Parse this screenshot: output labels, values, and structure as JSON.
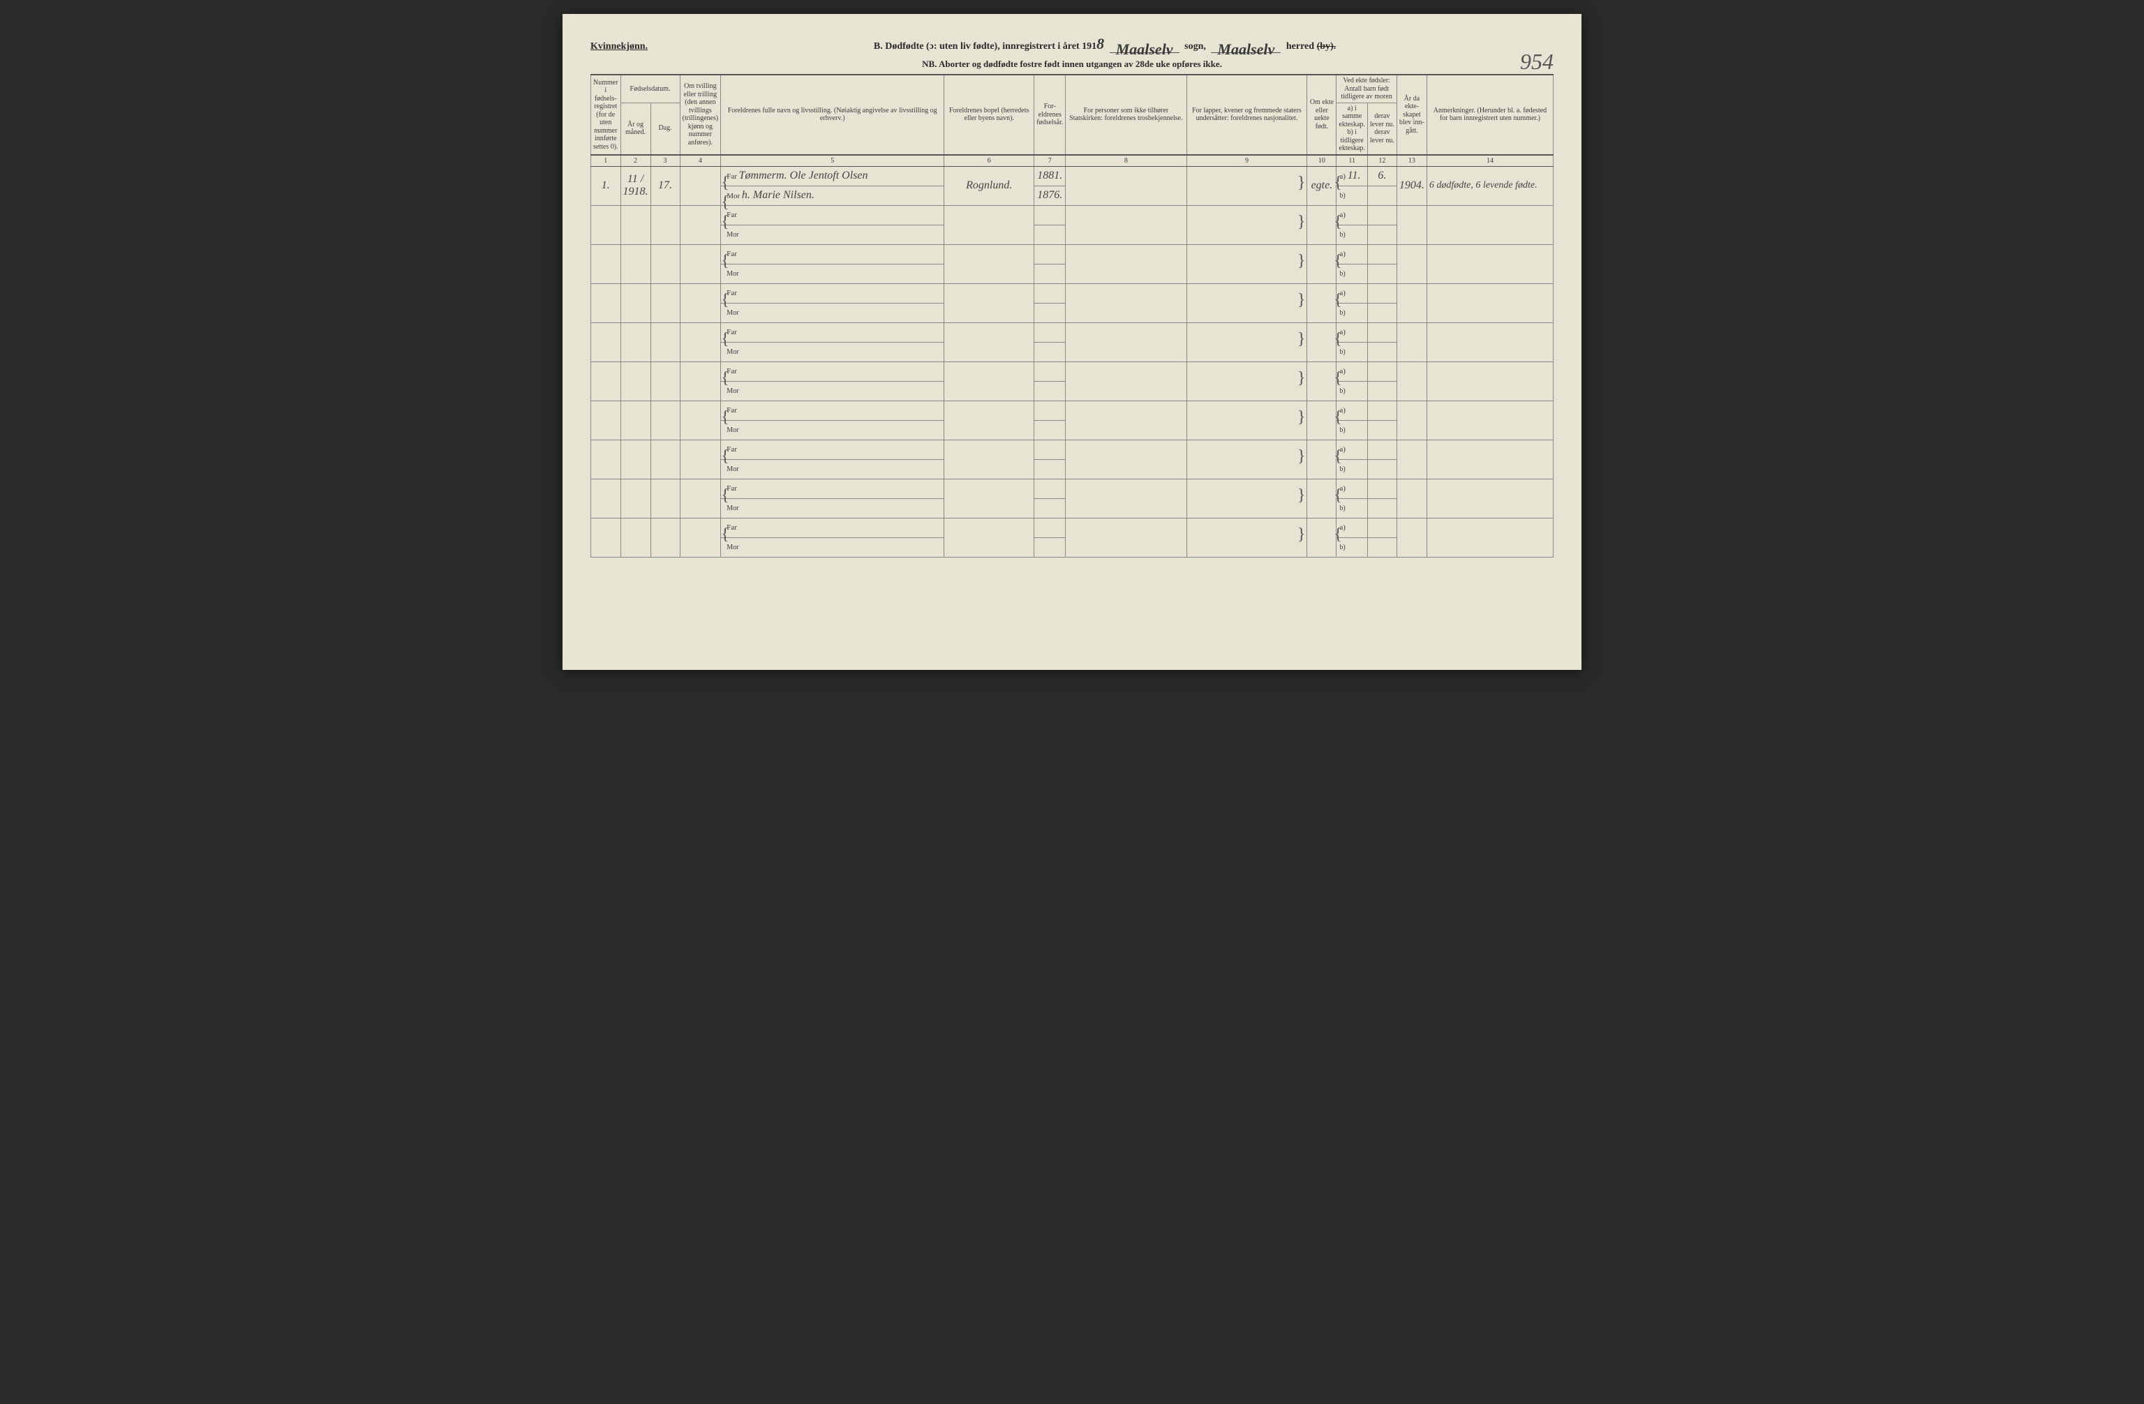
{
  "page": {
    "background": "#e8e4d4",
    "ink": "#3a3a3a",
    "border": "#888",
    "hand_ink": "#444"
  },
  "header": {
    "gender_label": "Kvinnekjønn.",
    "title_prefix": "B. Dødfødte (ɔ: uten liv fødte), innregistrert i året 191",
    "year_digit_hand": "8",
    "sogn_hand": "Maalselv",
    "sogn_label": "sogn,",
    "herred_hand": "Maalselv",
    "herred_label": "herred",
    "herred_struck": "(by).",
    "page_number_hand": "954",
    "nb_line": "NB. Aborter og dødfødte fostre født innen utgangen av 28de uke opføres ikke."
  },
  "columns": {
    "c1": "Nummer i fødsels-registret (for de uten nummer innførte settes 0).",
    "c_fodsel": "Fødselsdatum.",
    "c2": "År og måned.",
    "c3": "Dag.",
    "c4": "Om tvilling eller trilling (den annen tvillings (trillingenes) kjønn og nummer anføres).",
    "c5": "Foreldrenes fulle navn og livsstilling. (Nøiaktig angivelse av livsstilling og erhverv.)",
    "c6": "Foreldrenes bopel (herredets eller byens navn).",
    "c7": "For-eldrenes fødselsår.",
    "c8": "For personer som ikke tilhører Statskirken: foreldrenes trosbekjennelse.",
    "c9": "For lapper, kvener og fremmede staters undersåtter: foreldrenes nasjonalitet.",
    "c10": "Om ekte eller uekte født.",
    "c_ved": "Ved ekte fødsler: Antall barn født tidligere av moren",
    "c11a": "a) i samme ekteskap.",
    "c11b": "b) i tidligere ekteskap.",
    "c12a": "derav lever nu.",
    "c12b": "derav lever nu.",
    "c13": "År da ekte-skapet blev inn-gått.",
    "c14": "Anmerkninger. (Herunder bl. a. fødested for barn innregistrert uten nummer.)",
    "far": "Far",
    "mor": "Mor",
    "a": "a)",
    "b": "b)"
  },
  "colnums": [
    "1",
    "2",
    "3",
    "4",
    "5",
    "6",
    "7",
    "8",
    "9",
    "10",
    "11",
    "12",
    "13",
    "14"
  ],
  "row1": {
    "num": "1.",
    "year_month": "11 / 1918.",
    "day": "17.",
    "twin": "",
    "far_name": "Tømmerm. Ole Jentoft Olsen",
    "mor_name": "h. Marie Nilsen.",
    "bopel": "Rognlund.",
    "far_year": "1881.",
    "mor_year": "1876.",
    "c8": "",
    "c9": "",
    "ekte": "egte.",
    "c11": "11.",
    "c12": "6.",
    "c13": "1904.",
    "c14": "6 dødfødte, 6 levende fødte."
  },
  "blank_rows": 9
}
